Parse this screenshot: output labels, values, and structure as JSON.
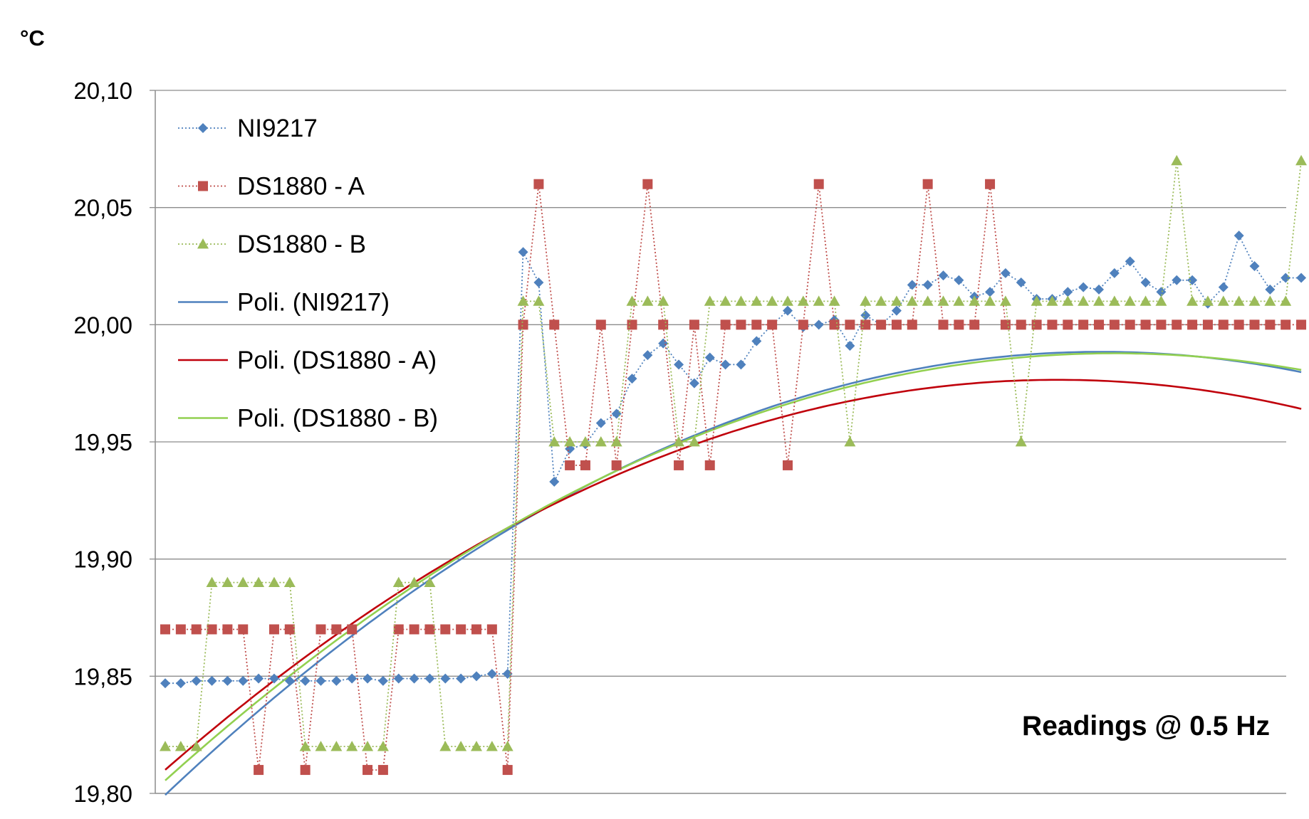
{
  "chart_data": {
    "type": "line",
    "ylabel": "°C",
    "annotation": "Readings @ 0.5 Hz",
    "ylim": [
      19.8,
      20.1
    ],
    "y_ticks": [
      "19,80",
      "19,85",
      "19,90",
      "19,95",
      "20,00",
      "20,05",
      "20,10"
    ],
    "y_tick_values": [
      19.8,
      19.85,
      19.9,
      19.95,
      20.0,
      20.05,
      20.1
    ],
    "grid": true,
    "legend_position": "top-left",
    "x": [
      1,
      2,
      3,
      4,
      5,
      6,
      7,
      8,
      9,
      10,
      11,
      12,
      13,
      14,
      15,
      16,
      17,
      18,
      19,
      20,
      21,
      22,
      23,
      24,
      25,
      26,
      27,
      28,
      29,
      30,
      31,
      32,
      33,
      34,
      35,
      36,
      37,
      38,
      39,
      40,
      41,
      42,
      43,
      44,
      45,
      46,
      47,
      48,
      49,
      50,
      51,
      52,
      53,
      54,
      55,
      56,
      57,
      58,
      59,
      60,
      61,
      62,
      63,
      64,
      65,
      66,
      67,
      68,
      69,
      70,
      71,
      72,
      73,
      74
    ],
    "series": [
      {
        "name": "NI9217",
        "kind": "data",
        "color": "#4f81bd",
        "marker": "diamond",
        "values": [
          19.847,
          19.847,
          19.848,
          19.848,
          19.848,
          19.848,
          19.849,
          19.849,
          19.848,
          19.848,
          19.848,
          19.848,
          19.849,
          19.849,
          19.848,
          19.849,
          19.849,
          19.849,
          19.849,
          19.849,
          19.85,
          19.851,
          19.851,
          20.031,
          20.018,
          19.933,
          19.947,
          19.949,
          19.958,
          19.962,
          19.977,
          19.987,
          19.992,
          19.983,
          19.975,
          19.986,
          19.983,
          19.983,
          19.993,
          20.0,
          20.006,
          19.999,
          20.0,
          20.002,
          19.991,
          20.004,
          20.0,
          20.006,
          20.017,
          20.017,
          20.021,
          20.019,
          20.012,
          20.014,
          20.022,
          20.018,
          20.011,
          20.011,
          20.014,
          20.016,
          20.015,
          20.022,
          20.027,
          20.018,
          20.014,
          20.019,
          20.019,
          20.009,
          20.016,
          20.038,
          20.025,
          20.015,
          20.02,
          20.02
        ]
      },
      {
        "name": "DS1880 - A",
        "kind": "data",
        "color": "#c0504d",
        "marker": "square",
        "values": [
          19.87,
          19.87,
          19.87,
          19.87,
          19.87,
          19.87,
          19.81,
          19.87,
          19.87,
          19.81,
          19.87,
          19.87,
          19.87,
          19.81,
          19.81,
          19.87,
          19.87,
          19.87,
          19.87,
          19.87,
          19.87,
          19.87,
          19.81,
          20.0,
          20.06,
          20.0,
          19.94,
          19.94,
          20.0,
          19.94,
          20.0,
          20.06,
          20.0,
          19.94,
          20.0,
          19.94,
          20.0,
          20.0,
          20.0,
          20.0,
          19.94,
          20.0,
          20.06,
          20.0,
          20.0,
          20.0,
          20.0,
          20.0,
          20.0,
          20.06,
          20.0,
          20.0,
          20.0,
          20.06,
          20.0,
          20.0,
          20.0,
          20.0,
          20.0,
          20.0,
          20.0,
          20.0,
          20.0,
          20.0,
          20.0,
          20.0,
          20.0,
          20.0,
          20.0,
          20.0,
          20.0,
          20.0,
          20.0,
          20.0
        ]
      },
      {
        "name": "DS1880 - B",
        "kind": "data",
        "color": "#9bbb59",
        "marker": "triangle",
        "values": [
          19.82,
          19.82,
          19.82,
          19.89,
          19.89,
          19.89,
          19.89,
          19.89,
          19.89,
          19.82,
          19.82,
          19.82,
          19.82,
          19.82,
          19.82,
          19.89,
          19.89,
          19.89,
          19.82,
          19.82,
          19.82,
          19.82,
          19.82,
          20.01,
          20.01,
          19.95,
          19.95,
          19.95,
          19.95,
          19.95,
          20.01,
          20.01,
          20.01,
          19.95,
          19.95,
          20.01,
          20.01,
          20.01,
          20.01,
          20.01,
          20.01,
          20.01,
          20.01,
          20.01,
          19.95,
          20.01,
          20.01,
          20.01,
          20.01,
          20.01,
          20.01,
          20.01,
          20.01,
          20.01,
          20.01,
          19.95,
          20.01,
          20.01,
          20.01,
          20.01,
          20.01,
          20.01,
          20.01,
          20.01,
          20.01,
          20.07,
          20.01,
          20.01,
          20.01,
          20.01,
          20.01,
          20.01,
          20.01,
          20.07
        ]
      },
      {
        "name": "Poli. (NI9217)",
        "kind": "trend",
        "color": "#4f81bd",
        "coeffs": [
          19.793,
          0.006394,
          -5.23e-05
        ]
      },
      {
        "name": "Poli. (DS1880 - A)",
        "kind": "trend",
        "color": "#c0000b",
        "coeffs": [
          19.8042,
          0.005905,
          -5.06e-05
        ]
      },
      {
        "name": "Poli. (DS1880 - B)",
        "kind": "trend",
        "color": "#92d050",
        "coeffs": [
          19.7995,
          0.006075,
          -4.9e-05
        ]
      }
    ]
  }
}
